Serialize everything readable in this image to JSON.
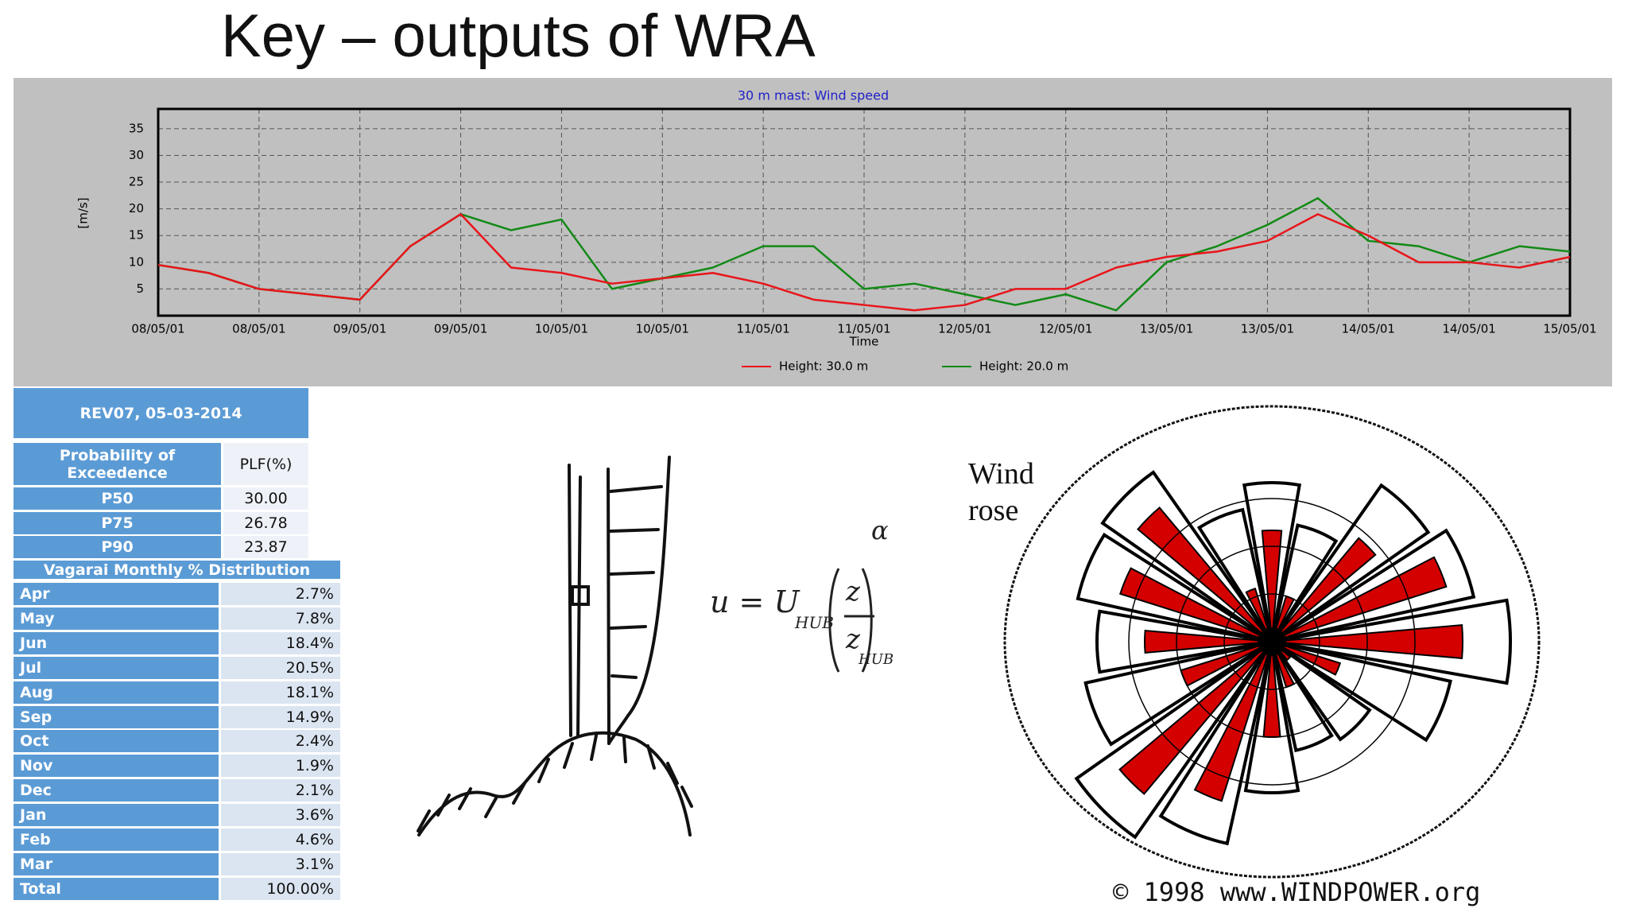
{
  "title": "Key – outputs of WRA",
  "chart_data": {
    "type": "line",
    "title": "30 m mast: Wind speed",
    "x_label": "Time",
    "y_label": "[m/s]",
    "categories": [
      "08/05/01",
      null,
      "08/05/01",
      null,
      "09/05/01",
      null,
      "09/05/01",
      null,
      "10/05/01",
      null,
      "10/05/01",
      null,
      "11/05/01",
      null,
      "11/05/01",
      null,
      "12/05/01",
      null,
      "12/05/01",
      null,
      "13/05/01",
      null,
      "13/05/01",
      null,
      "14/05/01",
      null,
      "14/05/01",
      null,
      "15/05/01"
    ],
    "series": [
      {
        "name": "Height: 30.0 m",
        "color": "#e8151a",
        "values": [
          9.5,
          8,
          5,
          4,
          3,
          13,
          19,
          9,
          8,
          6,
          7,
          8,
          6,
          3,
          2,
          1,
          2,
          5,
          5,
          9,
          11,
          12,
          14,
          19,
          15,
          10,
          10,
          9,
          11
        ]
      },
      {
        "name": "Height: 20.0 m",
        "color": "#138a16",
        "values": [
          9.5,
          8,
          5,
          4,
          3,
          13,
          19,
          16,
          18,
          5,
          7,
          9,
          13,
          13,
          5,
          6,
          4,
          2,
          4,
          1,
          10,
          13,
          17,
          22,
          14,
          13,
          10,
          13,
          12
        ]
      }
    ],
    "ylim": [
      0,
      38.7
    ],
    "yticks": [
      5,
      10,
      15,
      20,
      25,
      30,
      35
    ],
    "grid": true
  },
  "plf_table": {
    "caption": "REV07, 05-03-2014",
    "header": [
      "Probability of Exceedence",
      "PLF(%)"
    ],
    "rows": [
      [
        "P50",
        "30.00"
      ],
      [
        "P75",
        "26.78"
      ],
      [
        "P90",
        "23.87"
      ]
    ]
  },
  "monthly_table": {
    "caption": "Vagarai Monthly % Distribution",
    "rows": [
      [
        "Apr",
        "2.7%"
      ],
      [
        "May",
        "7.8%"
      ],
      [
        "Jun",
        "18.4%"
      ],
      [
        "Jul",
        "20.5%"
      ],
      [
        "Aug",
        "18.1%"
      ],
      [
        "Sep",
        "14.9%"
      ],
      [
        "Oct",
        "2.4%"
      ],
      [
        "Nov",
        "1.9%"
      ],
      [
        "Dec",
        "2.1%"
      ],
      [
        "Jan",
        "3.6%"
      ],
      [
        "Feb",
        "4.6%"
      ],
      [
        "Mar",
        "3.1%"
      ],
      [
        "Total",
        "100.00%"
      ]
    ]
  },
  "equation": {
    "lhs": "u = U",
    "sub": "HUB",
    "num": "z",
    "den": "z",
    "den_sub": "HUB",
    "exp": "α"
  },
  "wind_rose": {
    "label_line1": "Wind",
    "label_line2": "rose",
    "credit": "© 1998 www.WINDPOWER.org"
  }
}
